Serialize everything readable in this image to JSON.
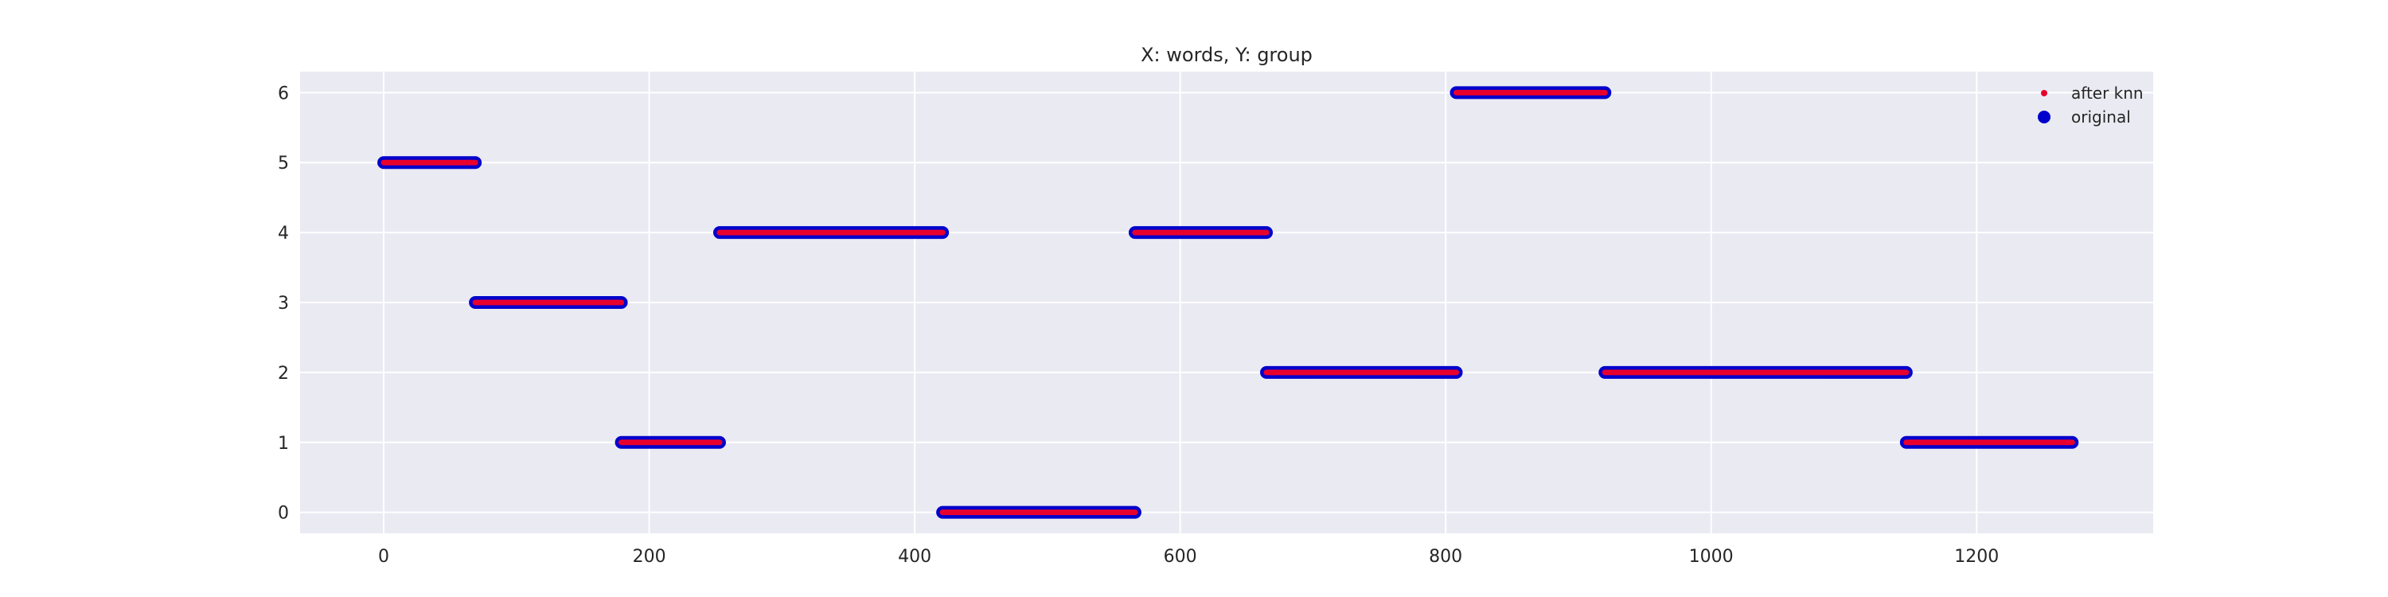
{
  "chart_data": {
    "type": "scatter",
    "title": "X: words, Y: group",
    "xlabel": "",
    "ylabel": "",
    "xlim": [
      -63,
      1333
    ],
    "ylim": [
      -0.3,
      6.3
    ],
    "xticks": [
      0,
      200,
      400,
      600,
      800,
      1000,
      1200
    ],
    "yticks": [
      0,
      1,
      2,
      3,
      4,
      5,
      6
    ],
    "grid": true,
    "legend_position": "top-right",
    "segments": [
      {
        "x_start": 0,
        "x_end": 69,
        "y": 5
      },
      {
        "x_start": 69,
        "x_end": 179,
        "y": 3
      },
      {
        "x_start": 179,
        "x_end": 253,
        "y": 1
      },
      {
        "x_start": 253,
        "x_end": 421,
        "y": 4
      },
      {
        "x_start": 421,
        "x_end": 566,
        "y": 0
      },
      {
        "x_start": 566,
        "x_end": 665,
        "y": 4
      },
      {
        "x_start": 665,
        "x_end": 808,
        "y": 2
      },
      {
        "x_start": 808,
        "x_end": 920,
        "y": 6
      },
      {
        "x_start": 920,
        "x_end": 1147,
        "y": 2
      },
      {
        "x_start": 1147,
        "x_end": 1272,
        "y": 1
      }
    ],
    "series": [
      {
        "name": "after knn",
        "color": "#e8002d",
        "marker": "small-dot"
      },
      {
        "name": "original",
        "color": "#0000cc",
        "marker": "large-dot"
      }
    ]
  }
}
